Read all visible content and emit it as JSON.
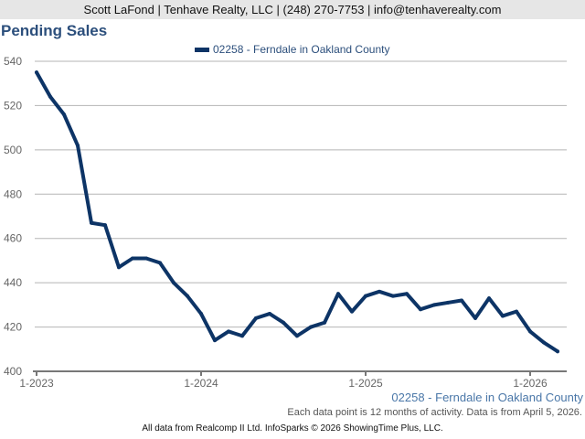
{
  "header": {
    "text": "Scott LaFond | Tenhave Realty, LLC | (248) 270-7753 | info@tenhaverealty.com"
  },
  "chart_data": {
    "type": "line",
    "title": "Pending Sales",
    "legend": "top-center",
    "grid": true,
    "ylim": [
      400,
      540
    ],
    "yticks": [
      400,
      420,
      440,
      460,
      480,
      500,
      520,
      540
    ],
    "xticks": [
      "1-2023",
      "1-2024",
      "1-2025",
      "1-2026"
    ],
    "x_start": "2023-01",
    "x_end": "2026-03",
    "series": [
      {
        "name": "02258 - Ferndale in Oakland County",
        "color": "#0d3466",
        "values": [
          535,
          524,
          516,
          502,
          467,
          466,
          447,
          451,
          451,
          449,
          440,
          434,
          426,
          414,
          418,
          416,
          424,
          426,
          422,
          416,
          420,
          422,
          435,
          427,
          434,
          436,
          434,
          435,
          428,
          430,
          431,
          432,
          424,
          433,
          425,
          427,
          418,
          413,
          409
        ]
      }
    ]
  },
  "source_label": "02258 - Ferndale in Oakland County",
  "note": "Each data point is 12 months of activity. Data is from April 5, 2026.",
  "footer": "All data from Realcomp II Ltd. InfoSparks © 2026 ShowingTime Plus, LLC."
}
